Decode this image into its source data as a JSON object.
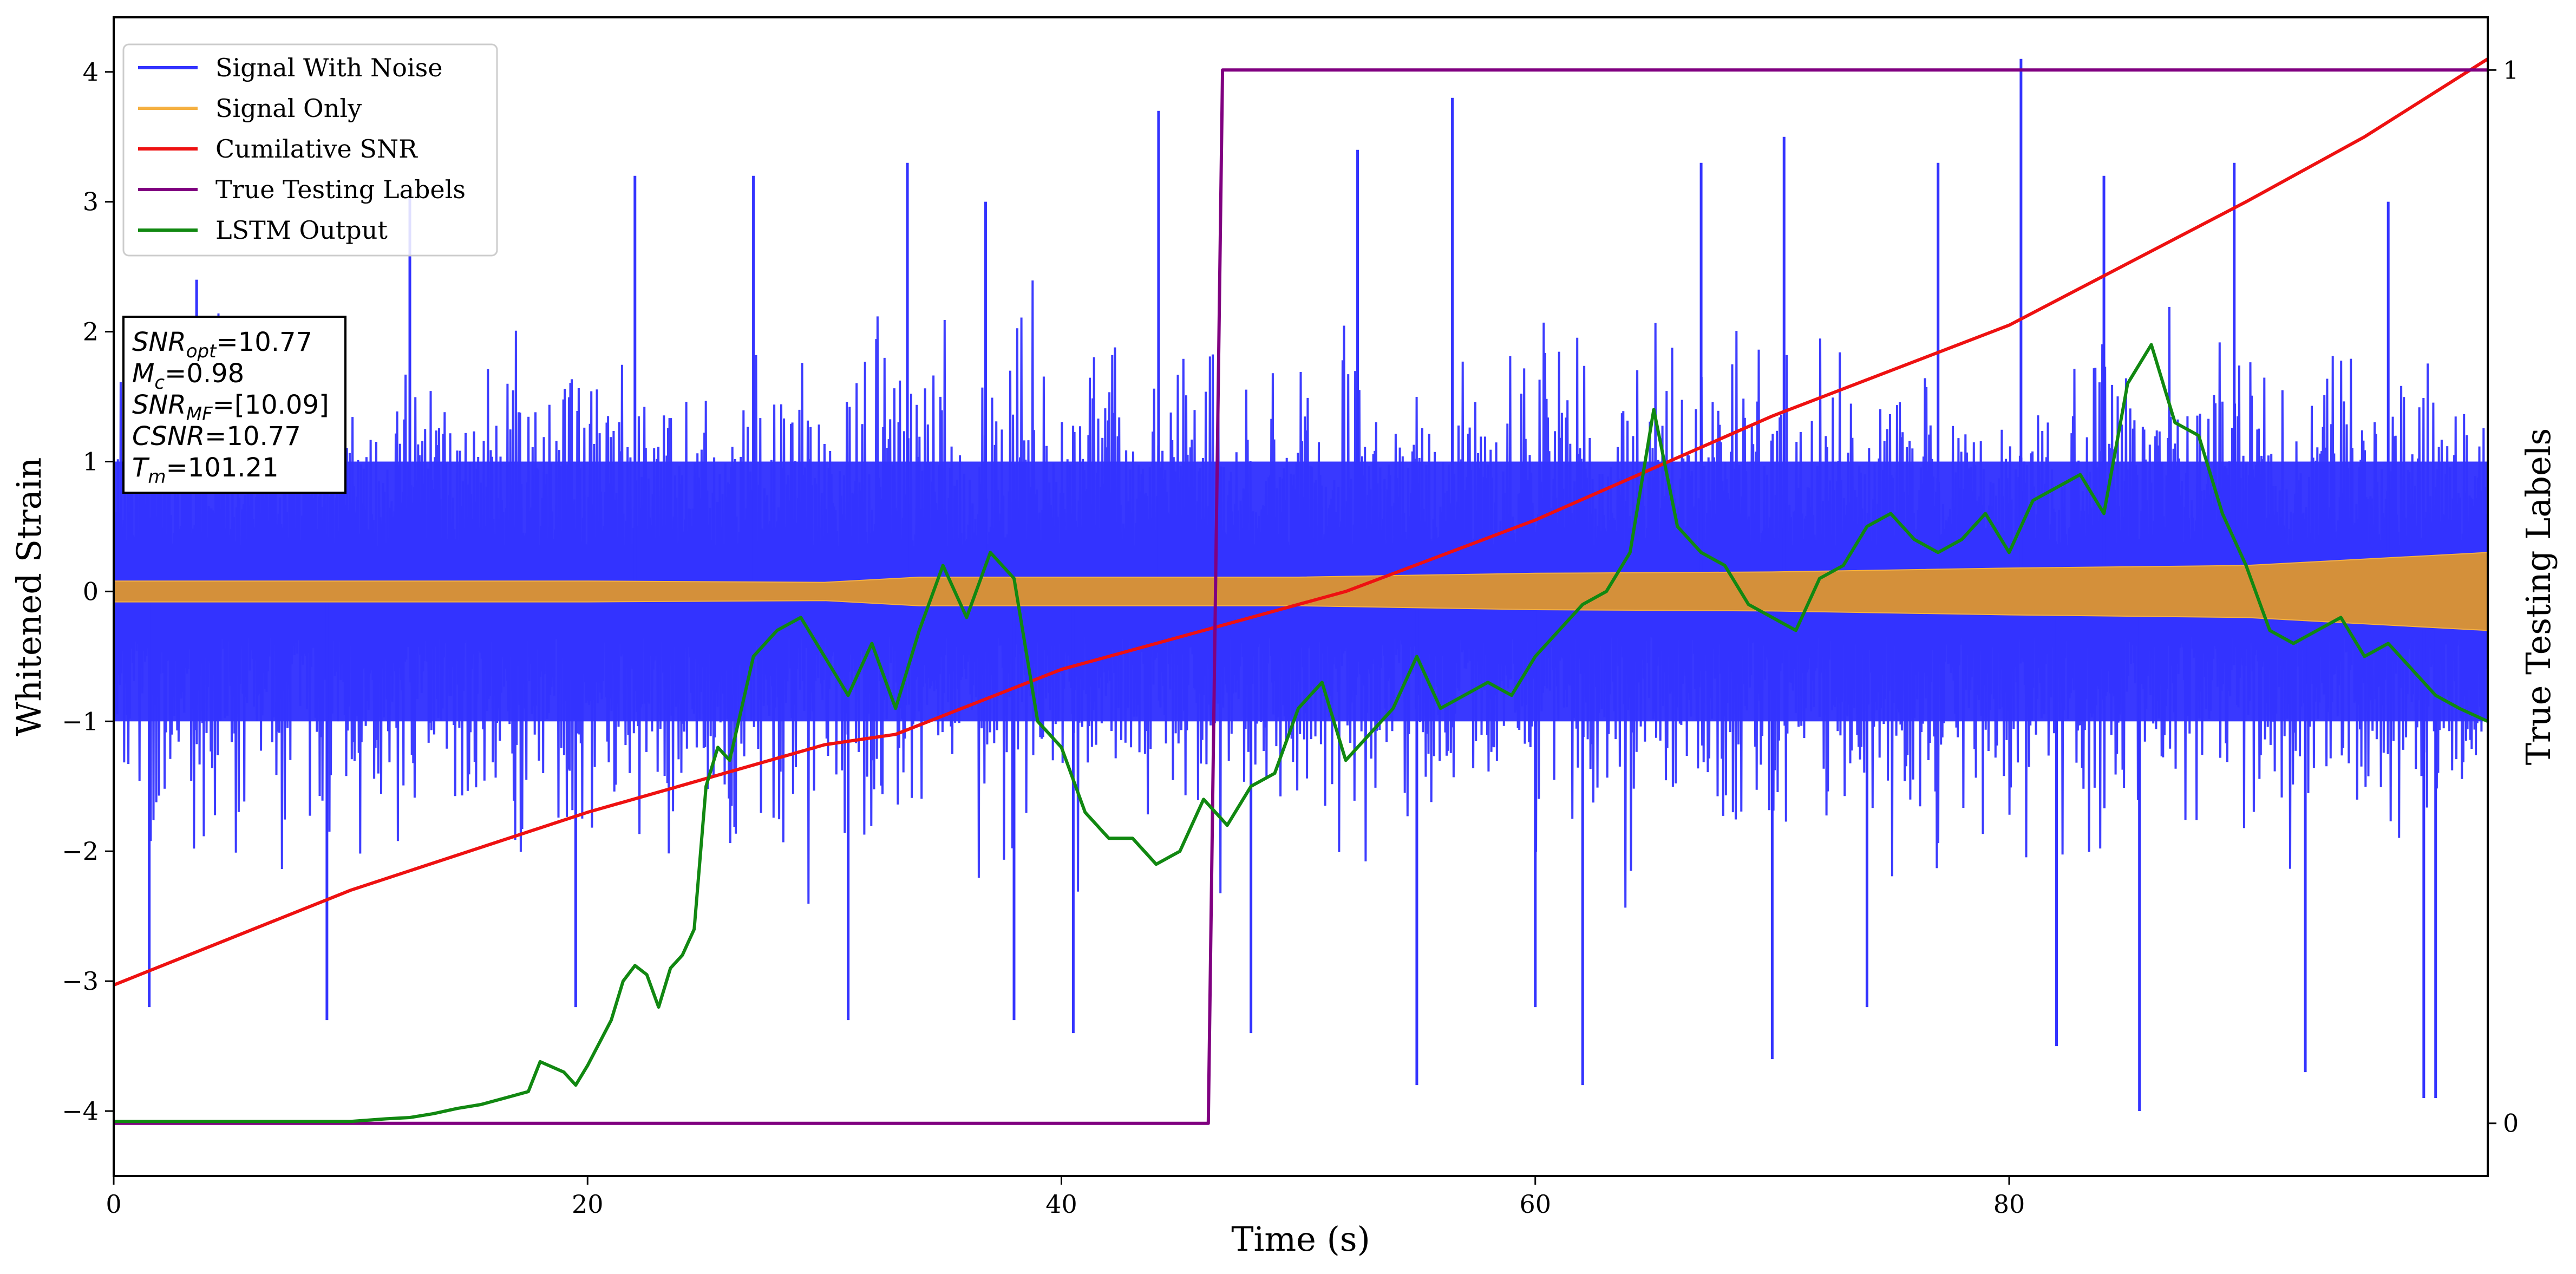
{
  "chart_data": {
    "type": "line",
    "xlabel": "Time (s)",
    "ylabel": "Whitened Strain",
    "y2label": "True Testing Labels",
    "xlim": [
      0,
      100.2
    ],
    "ylim": [
      -4.5,
      4.42
    ],
    "y2lim": [
      -0.05,
      1.05
    ],
    "xticks": [
      0,
      20,
      40,
      60,
      80
    ],
    "yticks": [
      -4,
      -3,
      -2,
      -1,
      0,
      1,
      2,
      3,
      4
    ],
    "y2ticks": [
      0,
      1
    ],
    "xtick_labels": [
      "0",
      "20",
      "40",
      "60",
      "80"
    ],
    "ytick_labels": [
      "−4",
      "−3",
      "−2",
      "−1",
      "0",
      "1",
      "2",
      "3",
      "4"
    ],
    "y2tick_labels": [
      "0",
      "1"
    ],
    "grid": false,
    "legend_position": "upper-left",
    "legend": [
      {
        "label": "Signal With Noise",
        "color": "#3333ff"
      },
      {
        "label": "Signal Only",
        "color": "#f5b041"
      },
      {
        "label": "Cumilative SNR",
        "color": "#ee1111"
      },
      {
        "label": "True Testing Labels",
        "color": "#800080"
      },
      {
        "label": "LSTM Output",
        "color": "#118811"
      }
    ],
    "series": [
      {
        "name": "Signal With Noise",
        "color": "#3333ff",
        "kind": "noise-band",
        "x_range": [
          0,
          100.2
        ],
        "core_band": [
          -1.0,
          1.0
        ],
        "typical_peak": [
          -2.0,
          2.0
        ],
        "max": 4.1,
        "min": -4.02,
        "spikes": [
          {
            "x": 1.5,
            "y": -3.2
          },
          {
            "x": 3.5,
            "y": 2.4
          },
          {
            "x": 9.0,
            "y": -3.3
          },
          {
            "x": 12.5,
            "y": 3.1
          },
          {
            "x": 19.5,
            "y": -3.2
          },
          {
            "x": 22.0,
            "y": 3.2
          },
          {
            "x": 27.0,
            "y": 3.2
          },
          {
            "x": 31.0,
            "y": -3.3
          },
          {
            "x": 33.5,
            "y": 3.3
          },
          {
            "x": 36.8,
            "y": 3.0
          },
          {
            "x": 38.0,
            "y": -3.3
          },
          {
            "x": 40.5,
            "y": -3.4
          },
          {
            "x": 44.1,
            "y": 3.7
          },
          {
            "x": 48.0,
            "y": -3.4
          },
          {
            "x": 52.5,
            "y": 3.4
          },
          {
            "x": 55.0,
            "y": -3.8
          },
          {
            "x": 56.5,
            "y": 3.8
          },
          {
            "x": 60.0,
            "y": -3.2
          },
          {
            "x": 62.0,
            "y": -3.8
          },
          {
            "x": 67.0,
            "y": 3.3
          },
          {
            "x": 70.0,
            "y": -3.6
          },
          {
            "x": 70.5,
            "y": 3.5
          },
          {
            "x": 74.0,
            "y": -3.2
          },
          {
            "x": 77.0,
            "y": 3.3
          },
          {
            "x": 80.5,
            "y": 4.1
          },
          {
            "x": 82.0,
            "y": -3.5
          },
          {
            "x": 84.0,
            "y": 3.2
          },
          {
            "x": 85.5,
            "y": -4.0
          },
          {
            "x": 89.5,
            "y": 3.3
          },
          {
            "x": 92.5,
            "y": -3.7
          },
          {
            "x": 96.0,
            "y": 3.0
          },
          {
            "x": 97.5,
            "y": -3.9
          },
          {
            "x": 98.0,
            "y": -3.9
          }
        ]
      },
      {
        "name": "Signal Only",
        "color": "#f5b041",
        "kind": "envelope",
        "x": [
          0,
          20,
          30,
          34,
          40,
          50,
          60,
          70,
          80,
          90,
          100.2
        ],
        "upper": [
          0.08,
          0.08,
          0.07,
          0.11,
          0.11,
          0.11,
          0.14,
          0.15,
          0.18,
          0.2,
          0.3
        ],
        "lower": [
          -0.08,
          -0.08,
          -0.07,
          -0.11,
          -0.11,
          -0.11,
          -0.14,
          -0.15,
          -0.18,
          -0.2,
          -0.3
        ]
      },
      {
        "name": "Cumilative SNR",
        "color": "#ee1111",
        "axis": "left",
        "x": [
          0,
          10,
          20,
          30,
          33,
          40,
          46,
          52,
          60,
          70,
          80,
          90,
          95,
          100.2
        ],
        "y": [
          -3.03,
          -2.3,
          -1.7,
          -1.18,
          -1.1,
          -0.6,
          -0.3,
          0.0,
          0.55,
          1.35,
          2.05,
          3.0,
          3.5,
          4.1
        ]
      },
      {
        "name": "True Testing Labels",
        "color": "#800080",
        "axis": "right",
        "x": [
          0,
          46.2,
          46.8,
          100.2
        ],
        "y": [
          0,
          0,
          1,
          1
        ]
      },
      {
        "name": "LSTM Output",
        "color": "#118811",
        "axis": "left",
        "x": [
          0,
          10,
          11.5,
          12.5,
          13.5,
          14.5,
          15.5,
          16.5,
          17.5,
          18,
          19,
          19.5,
          20,
          21,
          21.5,
          22,
          22.5,
          23,
          23.5,
          24,
          24.5,
          25,
          25.5,
          26,
          27,
          28,
          29,
          30,
          31,
          32,
          33,
          34,
          35,
          36,
          37,
          38,
          39,
          40,
          41,
          42,
          43,
          44,
          45,
          46,
          47,
          48,
          49,
          50,
          51,
          52,
          53,
          54,
          55,
          56,
          57,
          58,
          59,
          60,
          61,
          62,
          63,
          64,
          65,
          66,
          67,
          68,
          69,
          70,
          71,
          72,
          73,
          74,
          75,
          76,
          77,
          78,
          79,
          80,
          81,
          82,
          83,
          84,
          85,
          86,
          87,
          88,
          89,
          90,
          91,
          92,
          93,
          94,
          95,
          96,
          97,
          98,
          99,
          100.2
        ],
        "y": [
          -4.08,
          -4.08,
          -4.06,
          -4.05,
          -4.02,
          -3.98,
          -3.95,
          -3.9,
          -3.85,
          -3.62,
          -3.7,
          -3.8,
          -3.65,
          -3.3,
          -3.0,
          -2.88,
          -2.95,
          -3.2,
          -2.9,
          -2.8,
          -2.6,
          -1.5,
          -1.2,
          -1.3,
          -0.5,
          -0.3,
          -0.2,
          -0.5,
          -0.8,
          -0.4,
          -0.9,
          -0.3,
          0.2,
          -0.2,
          0.3,
          0.1,
          -1.0,
          -1.2,
          -1.7,
          -1.9,
          -1.9,
          -2.1,
          -2.0,
          -1.6,
          -1.8,
          -1.5,
          -1.4,
          -0.9,
          -0.7,
          -1.3,
          -1.1,
          -0.9,
          -0.5,
          -0.9,
          -0.8,
          -0.7,
          -0.8,
          -0.5,
          -0.3,
          -0.1,
          0.0,
          0.3,
          1.4,
          0.5,
          0.3,
          0.2,
          -0.1,
          -0.2,
          -0.3,
          0.1,
          0.2,
          0.5,
          0.6,
          0.4,
          0.3,
          0.4,
          0.6,
          0.3,
          0.7,
          0.8,
          0.9,
          0.6,
          1.6,
          1.9,
          1.3,
          1.2,
          0.6,
          0.2,
          -0.3,
          -0.4,
          -0.3,
          -0.2,
          -0.5,
          -0.4,
          -0.6,
          -0.8,
          -0.9,
          -1.0
        ]
      }
    ],
    "annotation": {
      "lines": [
        {
          "var": "SNR",
          "sub": "opt",
          "value": "=10.77"
        },
        {
          "var": "M",
          "sub": "c",
          "value": "=0.98"
        },
        {
          "var": "SNR",
          "sub": "MF",
          "value": "=[10.09]"
        },
        {
          "var": "CSNR",
          "sub": "",
          "value": "=10.77"
        },
        {
          "var": "T",
          "sub": "m",
          "value": "=101.21"
        }
      ]
    }
  }
}
